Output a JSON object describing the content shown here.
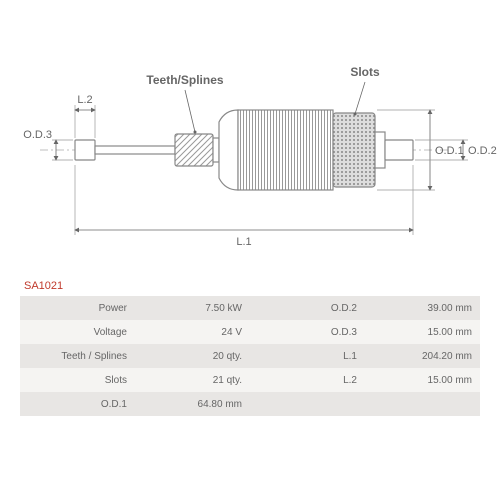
{
  "part_id": "SA1021",
  "diagram": {
    "labels": {
      "teeth_splines": "Teeth/Splines",
      "slots": "Slots",
      "l1": "L.1",
      "l2": "L.2",
      "od1": "O.D.1",
      "od2": "O.D.2",
      "od3": "O.D.3"
    },
    "stroke_color": "#888888",
    "fill_light": "#ffffff",
    "fill_hatched": "#bbbbbb"
  },
  "specs": {
    "left": [
      {
        "label": "Power",
        "value": "7.50 kW"
      },
      {
        "label": "Voltage",
        "value": "24 V"
      },
      {
        "label": "Teeth / Splines",
        "value": "20 qty."
      },
      {
        "label": "Slots",
        "value": "21 qty."
      },
      {
        "label": "O.D.1",
        "value": "64.80 mm"
      }
    ],
    "right": [
      {
        "label": "O.D.2",
        "value": "39.00 mm"
      },
      {
        "label": "O.D.3",
        "value": "15.00 mm"
      },
      {
        "label": "L.1",
        "value": "204.20 mm"
      },
      {
        "label": "L.2",
        "value": "15.00 mm"
      },
      {
        "label": "",
        "value": ""
      }
    ]
  }
}
